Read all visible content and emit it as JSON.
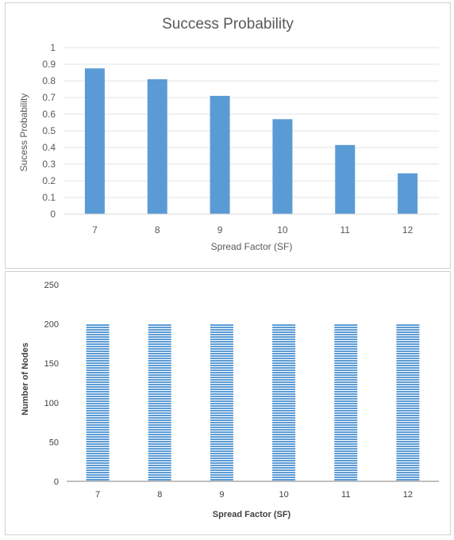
{
  "chart_data": [
    {
      "type": "bar",
      "title": "Success Probability",
      "xlabel": "Spread Factor (SF)",
      "ylabel": "Sucess Probability",
      "categories": [
        "7",
        "8",
        "9",
        "10",
        "11",
        "12"
      ],
      "values": [
        0.875,
        0.81,
        0.71,
        0.57,
        0.415,
        0.245
      ],
      "ylim": [
        0,
        1
      ],
      "yticks": [
        "0",
        "0.1",
        "0.2",
        "0.3",
        "0.4",
        "0.5",
        "0.6",
        "0.7",
        "0.8",
        "0.9",
        "1"
      ],
      "grid": true,
      "bar_color": "#5b9bd5"
    },
    {
      "type": "bar",
      "title": "",
      "xlabel": "Spread Factor (SF)",
      "ylabel": "Number of Nodes",
      "categories": [
        "7",
        "8",
        "9",
        "10",
        "11",
        "12"
      ],
      "values": [
        200,
        200,
        200,
        200,
        200,
        200
      ],
      "ylim": [
        0,
        250
      ],
      "yticks": [
        "0",
        "50",
        "100",
        "150",
        "200",
        "250"
      ],
      "grid": false,
      "bar_color": "#5b9bd5",
      "bar_pattern": "horizontal-stripes"
    }
  ]
}
